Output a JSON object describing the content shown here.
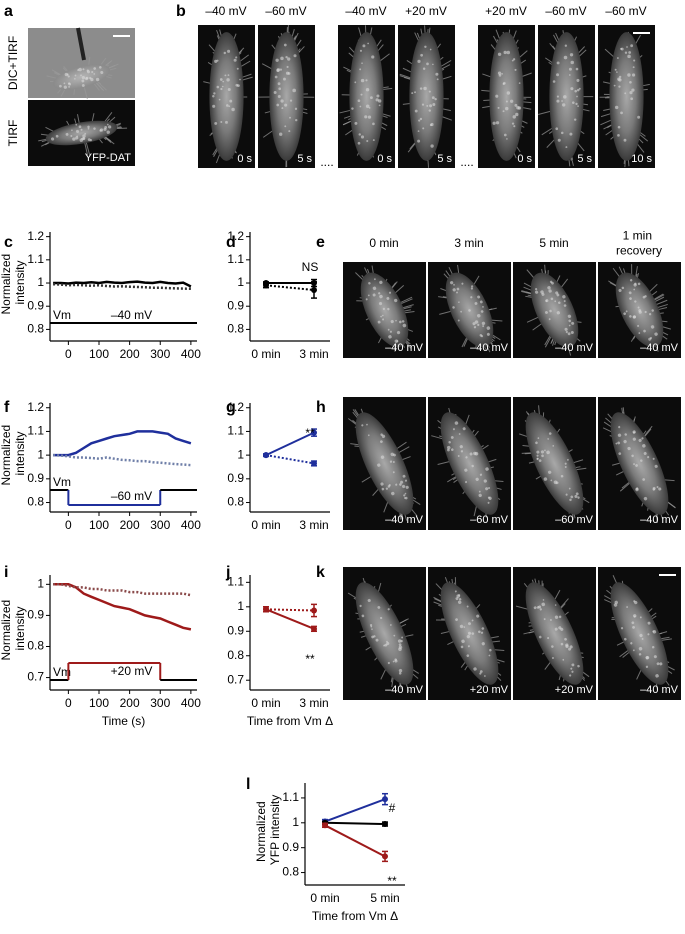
{
  "panels": [
    "a",
    "b",
    "c",
    "d",
    "e",
    "f",
    "g",
    "h",
    "i",
    "j",
    "k",
    "l"
  ],
  "a": {
    "labels": [
      "DIC+TIRF",
      "TIRF"
    ],
    "caption": "YFP-DAT"
  },
  "b": {
    "headers": [
      "–40 mV",
      "–60 mV",
      "–40 mV",
      "+20 mV",
      "+20 mV",
      "–60 mV",
      "–60 mV"
    ],
    "times": [
      "0 s",
      "5 s",
      "0 s",
      "5 s",
      "0 s",
      "5 s",
      "10 s"
    ],
    "separator": "...."
  },
  "e": {
    "headers": [
      "0 min",
      "3 min",
      "5 min",
      "1 min recovery"
    ],
    "voltages": [
      "–40 mV",
      "–40 mV",
      "–40 mV",
      "–40 mV"
    ]
  },
  "h": {
    "voltages": [
      "–40 mV",
      "–60 mV",
      "–60 mV",
      "–40 mV"
    ]
  },
  "k": {
    "voltages": [
      "–40 mV",
      "+20 mV",
      "+20 mV",
      "–40 mV"
    ]
  },
  "chart_data": [
    {
      "type": "line",
      "ylabel": "Normalized intensity",
      "x": [
        -50,
        -25,
        0,
        25,
        50,
        75,
        100,
        125,
        150,
        175,
        200,
        225,
        250,
        275,
        300,
        325,
        350,
        375,
        400
      ],
      "xlim": [
        -60,
        420
      ],
      "xticks": [
        0,
        100,
        200,
        300,
        400
      ],
      "ylim": [
        0.75,
        1.22
      ],
      "yticks": [
        0.8,
        0.9,
        1,
        1.1,
        1.2
      ],
      "series": [
        {
          "color": "#000000",
          "style": "solid",
          "values": [
            1.0,
            1.0,
            0.998,
            1.002,
            1.0,
            1.003,
            1.0,
            1.005,
            1.002,
            1.0,
            1.004,
            1.006,
            1.002,
            1.0,
            1.005,
            1.0,
            0.998,
            1.002,
            0.985
          ]
        },
        {
          "color": "#333333",
          "style": "dotted",
          "values": [
            0.995,
            0.993,
            0.99,
            0.992,
            0.99,
            0.988,
            0.99,
            0.987,
            0.985,
            0.986,
            0.984,
            0.983,
            0.982,
            0.98,
            0.98,
            0.978,
            0.977,
            0.976,
            0.975
          ]
        }
      ],
      "protocol": {
        "label": "Vm",
        "level": "–40 mV"
      }
    },
    {
      "type": "errorbar",
      "categories": [
        "0 min",
        "3 min"
      ],
      "ylim": [
        0.75,
        1.22
      ],
      "yticks": [
        0.8,
        0.9,
        1,
        1.1,
        1.2
      ],
      "series": [
        {
          "color": "#000000",
          "style": "solid",
          "values": [
            1.0,
            1.0
          ],
          "errors": [
            0.005,
            0.015
          ]
        },
        {
          "color": "#000000",
          "style": "dotted",
          "values": [
            0.99,
            0.97
          ],
          "errors": [
            0.01,
            0.035
          ]
        }
      ],
      "annotations": [
        "NS"
      ]
    },
    {
      "type": "line",
      "ylabel": "Normalized intensity",
      "x": [
        -50,
        -25,
        0,
        25,
        50,
        75,
        100,
        125,
        150,
        175,
        200,
        225,
        250,
        275,
        300,
        325,
        350,
        375,
        400
      ],
      "xlim": [
        -60,
        420
      ],
      "xticks": [
        0,
        100,
        200,
        300,
        400
      ],
      "ylim": [
        0.76,
        1.22
      ],
      "yticks": [
        0.8,
        0.9,
        1,
        1.1,
        1.2
      ],
      "series": [
        {
          "color": "#1f2f9c",
          "style": "solid",
          "values": [
            1.0,
            1.0,
            1.0,
            1.01,
            1.03,
            1.05,
            1.06,
            1.07,
            1.08,
            1.085,
            1.09,
            1.1,
            1.1,
            1.1,
            1.095,
            1.09,
            1.07,
            1.06,
            1.05
          ]
        },
        {
          "color": "#6f7fa8",
          "style": "dotted",
          "values": [
            1.0,
            0.998,
            0.995,
            0.99,
            0.99,
            0.988,
            0.985,
            0.99,
            0.985,
            0.98,
            0.978,
            0.975,
            0.975,
            0.97,
            0.968,
            0.965,
            0.962,
            0.96,
            0.958
          ]
        }
      ],
      "protocol": {
        "label": "Vm",
        "level": "–60 mV",
        "step_x": [
          0,
          300
        ]
      }
    },
    {
      "type": "errorbar",
      "categories": [
        "0 min",
        "3 min"
      ],
      "ylim": [
        0.76,
        1.22
      ],
      "yticks": [
        0.8,
        0.9,
        1,
        1.1,
        1.2
      ],
      "series": [
        {
          "color": "#1f2f9c",
          "style": "solid",
          "values": [
            1.0,
            1.095
          ],
          "errors": [
            0.005,
            0.015
          ]
        },
        {
          "color": "#1f2f9c",
          "style": "dotted",
          "values": [
            1.0,
            0.965
          ],
          "errors": [
            0.005,
            0.01
          ]
        }
      ],
      "annotations": [
        "**"
      ]
    },
    {
      "type": "line",
      "ylabel": "Normalized intensity",
      "xlabel": "Time (s)",
      "x": [
        -50,
        -25,
        0,
        25,
        50,
        75,
        100,
        125,
        150,
        175,
        200,
        225,
        250,
        275,
        300,
        325,
        350,
        375,
        400
      ],
      "xlim": [
        -60,
        420
      ],
      "xticks": [
        0,
        100,
        200,
        300,
        400
      ],
      "ylim": [
        0.66,
        1.03
      ],
      "yticks": [
        0.7,
        0.8,
        0.9,
        1
      ],
      "series": [
        {
          "color": "#9e1a1a",
          "style": "solid",
          "values": [
            1.0,
            1.0,
            1.0,
            0.99,
            0.97,
            0.96,
            0.95,
            0.94,
            0.93,
            0.925,
            0.92,
            0.91,
            0.9,
            0.895,
            0.89,
            0.88,
            0.87,
            0.86,
            0.855
          ]
        },
        {
          "color": "#8a4a4a",
          "style": "dotted",
          "values": [
            1.0,
            1.0,
            0.995,
            0.99,
            0.99,
            0.985,
            0.985,
            0.98,
            0.98,
            0.98,
            0.975,
            0.975,
            0.97,
            0.97,
            0.97,
            0.97,
            0.97,
            0.97,
            0.965
          ]
        }
      ],
      "protocol": {
        "label": "Vm",
        "level": "+20 mV",
        "step_x": [
          0,
          300
        ]
      }
    },
    {
      "type": "errorbar",
      "xlabel": "Time from Vm Δ",
      "categories": [
        "0 min",
        "3 min"
      ],
      "ylim": [
        0.66,
        1.13
      ],
      "yticks": [
        0.7,
        0.8,
        0.9,
        1,
        1.1
      ],
      "series": [
        {
          "color": "#9e1a1a",
          "style": "solid",
          "values": [
            0.99,
            0.91
          ],
          "errors": [
            0.01,
            0.01
          ]
        },
        {
          "color": "#9e1a1a",
          "style": "dotted",
          "values": [
            0.99,
            0.985
          ],
          "errors": [
            0.01,
            0.025
          ]
        }
      ],
      "annotations": [
        "**"
      ]
    },
    {
      "type": "errorbar",
      "ylabel": "Normalized YFP intensity",
      "xlabel": "Time from Vm Δ",
      "categories": [
        "0 min",
        "5 min"
      ],
      "ylim": [
        0.75,
        1.16
      ],
      "yticks": [
        0.8,
        0.9,
        1,
        1.1
      ],
      "series": [
        {
          "color": "#1f2f9c",
          "style": "solid",
          "values": [
            1.005,
            1.095
          ],
          "errors": [
            0.008,
            0.022
          ]
        },
        {
          "color": "#000000",
          "style": "solid",
          "values": [
            1.0,
            0.995
          ],
          "errors": [
            0.005,
            0.008
          ]
        },
        {
          "color": "#9e1a1a",
          "style": "solid",
          "values": [
            0.99,
            0.865
          ],
          "errors": [
            0.008,
            0.02
          ]
        }
      ],
      "annotations": [
        "#",
        "**"
      ]
    }
  ]
}
